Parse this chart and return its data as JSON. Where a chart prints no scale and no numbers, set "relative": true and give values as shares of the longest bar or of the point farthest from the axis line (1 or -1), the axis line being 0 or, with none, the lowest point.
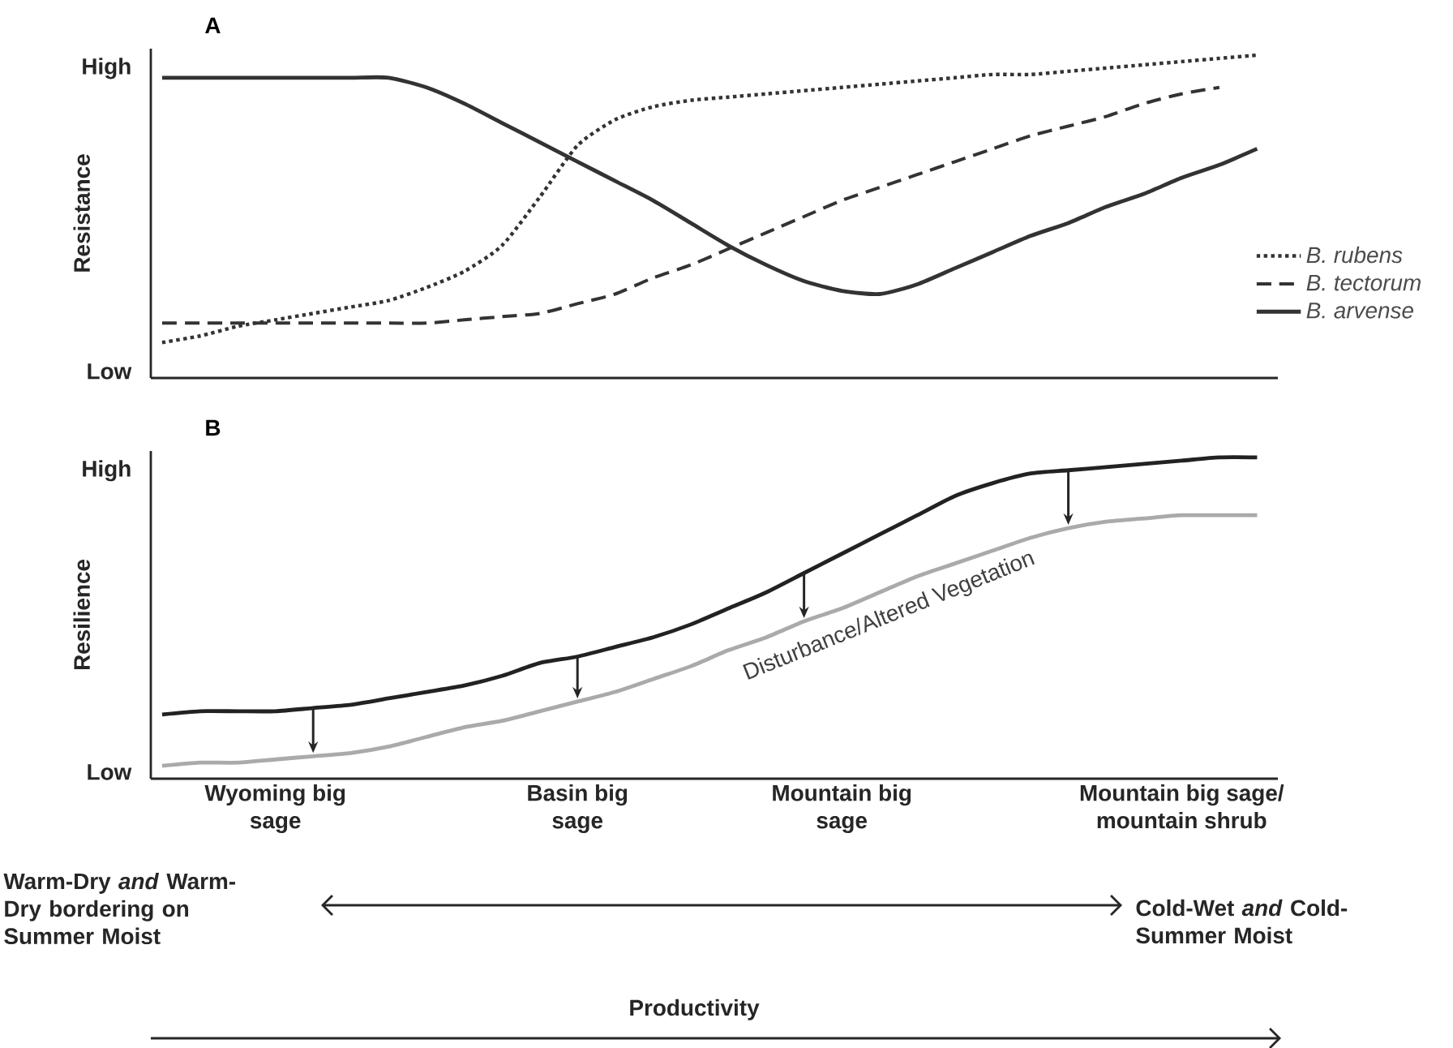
{
  "chart_data": [
    {
      "type": "line",
      "title": "A",
      "ylabel": "Resistance",
      "relative": true,
      "legend": "right",
      "marker": "none",
      "categories": [
        null,
        null,
        null,
        null,
        null,
        null,
        null,
        null,
        null,
        null,
        null,
        null,
        null,
        null,
        null,
        null,
        null,
        null,
        null,
        null,
        null,
        null,
        null,
        null,
        null,
        null,
        null,
        null,
        null,
        null
      ],
      "series": [
        {
          "name": "B. rubens",
          "color": "#333333",
          "line_style": "dotted",
          "values": [
            0.11,
            0.13,
            0.16,
            0.18,
            0.2,
            0.22,
            0.24,
            0.28,
            0.33,
            0.41,
            0.56,
            0.72,
            0.8,
            0.84,
            0.86,
            0.87,
            0.88,
            0.89,
            0.9,
            0.91,
            0.92,
            0.93,
            0.94,
            0.94,
            0.95,
            0.96,
            0.97,
            0.98,
            0.99,
            1.0
          ]
        },
        {
          "name": "B. tectorum",
          "color": "#333333",
          "line_style": "dashed",
          "values": [
            0.17,
            0.17,
            0.17,
            0.17,
            0.17,
            0.17,
            0.17,
            0.17,
            0.18,
            0.19,
            0.2,
            0.23,
            0.26,
            0.31,
            0.35,
            0.4,
            0.45,
            0.5,
            0.55,
            0.59,
            0.63,
            0.67,
            0.71,
            0.75,
            0.78,
            0.81,
            0.85,
            0.88,
            0.9,
            null
          ]
        },
        {
          "name": "B. arvense",
          "color": "#333333",
          "line_style": "solid",
          "values": [
            0.93,
            0.93,
            0.93,
            0.93,
            0.93,
            0.93,
            0.93,
            0.9,
            0.85,
            0.79,
            0.73,
            0.67,
            0.61,
            0.55,
            0.48,
            0.41,
            0.35,
            0.3,
            0.27,
            0.26,
            0.29,
            0.34,
            0.39,
            0.44,
            0.48,
            0.53,
            0.57,
            0.62,
            0.66,
            0.71
          ]
        }
      ],
      "annotations": [
        "High",
        "Low"
      ]
    },
    {
      "type": "line",
      "title": "B",
      "ylabel": "Resilience",
      "relative": true,
      "legend": false,
      "marker": "none",
      "categories": [
        null,
        null,
        null,
        "Wyoming big sage",
        null,
        null,
        null,
        null,
        null,
        null,
        null,
        "Basin big sage",
        null,
        null,
        null,
        null,
        null,
        null,
        "Mountain big sage",
        null,
        null,
        null,
        null,
        null,
        null,
        null,
        null,
        "Mountain big sage/ mountain shrub",
        null,
        null
      ],
      "series": [
        {
          "color": "#222222",
          "line_style": "solid",
          "values": [
            0.2,
            0.21,
            0.21,
            0.21,
            0.22,
            0.23,
            0.25,
            0.27,
            0.29,
            0.32,
            0.36,
            0.38,
            0.41,
            0.44,
            0.48,
            0.53,
            0.58,
            0.64,
            0.7,
            0.76,
            0.82,
            0.88,
            0.92,
            0.95,
            0.96,
            0.97,
            0.98,
            0.99,
            1.0,
            1.0
          ]
        },
        {
          "name": "Disturbance/Altered Vegetation",
          "color": "#aaaaaa",
          "line_style": "solid",
          "values": [
            0.04,
            0.05,
            0.05,
            0.06,
            0.07,
            0.08,
            0.1,
            0.13,
            0.16,
            0.18,
            0.21,
            0.24,
            0.27,
            0.31,
            0.35,
            0.4,
            0.44,
            0.49,
            0.53,
            0.58,
            0.63,
            0.67,
            0.71,
            0.75,
            0.78,
            0.8,
            0.81,
            0.82,
            0.82,
            0.82
          ]
        }
      ],
      "annotations": [
        "High",
        "Low",
        "Warm-Dry *and* Warm-Dry bordering on Summer Moist",
        "Cold-Wet *and* Cold-Summer Moist",
        "Productivity"
      ]
    }
  ]
}
